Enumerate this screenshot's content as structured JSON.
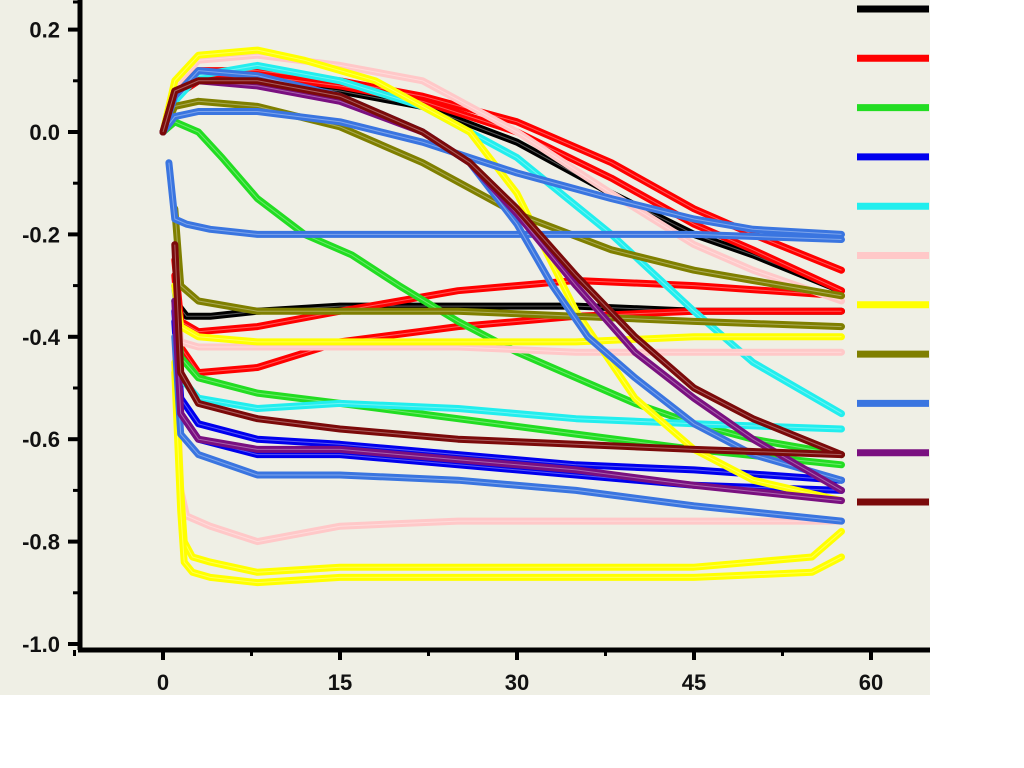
{
  "colors": {
    "background": "#efefe5",
    "axis": "#000000"
  },
  "chart_data": {
    "type": "line",
    "title": "",
    "xlabel": "",
    "ylabel": "",
    "xlim": [
      -9.5,
      60
    ],
    "ylim": [
      -1.0,
      0.26
    ],
    "x_ticks": [
      0,
      15,
      30,
      45,
      60
    ],
    "x_tick_labels": [
      "0",
      "15",
      "30",
      "45",
      "60"
    ],
    "y_ticks": [
      0.2,
      0.0,
      -0.2,
      -0.4,
      -0.6,
      -0.8,
      -1.0
    ],
    "y_tick_labels": [
      "0.2",
      "0.0",
      "-0.2",
      "-0.4",
      "-0.6",
      "-0.8",
      "-1.0"
    ],
    "grid": false,
    "legend_position": "right",
    "series": [
      {
        "color": "#000000",
        "curves": [
          {
            "x": [
              0,
              1,
              3,
              8,
              15,
              22,
              30,
              38,
              45,
              50,
              57.5
            ],
            "y": [
              0.0,
              0.07,
              0.1,
              0.1,
              0.08,
              0.05,
              -0.02,
              -0.12,
              -0.2,
              -0.24,
              -0.31
            ]
          },
          {
            "x": [
              1,
              2,
              4,
              8,
              15,
              25,
              35,
              45,
              57.5
            ],
            "y": [
              -0.33,
              -0.36,
              -0.36,
              -0.35,
              -0.34,
              -0.34,
              -0.34,
              -0.35,
              -0.35
            ]
          }
        ]
      },
      {
        "color": "#ff0000",
        "curves": [
          {
            "x": [
              0,
              1,
              3,
              8,
              15,
              22,
              30,
              38,
              45,
              50,
              57.5
            ],
            "y": [
              0.0,
              0.08,
              0.12,
              0.12,
              0.1,
              0.07,
              0.02,
              -0.06,
              -0.15,
              -0.2,
              -0.27
            ]
          },
          {
            "x": [
              0,
              1,
              3,
              8,
              15,
              22,
              30,
              38,
              45,
              50,
              57.5
            ],
            "y": [
              0.0,
              0.07,
              0.1,
              0.11,
              0.09,
              0.06,
              0.0,
              -0.09,
              -0.18,
              -0.23,
              -0.31
            ]
          },
          {
            "x": [
              1,
              1.5,
              3,
              8,
              15,
              25,
              35,
              45,
              57.5
            ],
            "y": [
              -0.25,
              -0.37,
              -0.39,
              -0.38,
              -0.35,
              -0.31,
              -0.29,
              -0.3,
              -0.32
            ]
          },
          {
            "x": [
              1,
              1.5,
              3,
              8,
              15,
              25,
              35,
              45,
              57.5
            ],
            "y": [
              -0.28,
              -0.42,
              -0.47,
              -0.46,
              -0.41,
              -0.38,
              -0.36,
              -0.35,
              -0.35
            ]
          }
        ]
      },
      {
        "color": "#22dd22",
        "curves": [
          {
            "x": [
              0,
              1,
              3,
              5,
              8,
              12,
              16,
              20,
              25,
              30,
              35,
              40,
              45,
              50,
              57.5
            ],
            "y": [
              0.0,
              0.02,
              0.0,
              -0.05,
              -0.13,
              -0.2,
              -0.24,
              -0.3,
              -0.37,
              -0.43,
              -0.48,
              -0.53,
              -0.57,
              -0.6,
              -0.63
            ]
          },
          {
            "x": [
              1,
              1.5,
              3,
              8,
              15,
              25,
              35,
              45,
              57.5
            ],
            "y": [
              -0.3,
              -0.44,
              -0.48,
              -0.51,
              -0.53,
              -0.56,
              -0.59,
              -0.62,
              -0.65
            ]
          }
        ]
      },
      {
        "color": "#0000ee",
        "curves": [
          {
            "x": [
              1,
              1.5,
              3,
              8,
              15,
              25,
              35,
              45,
              57.5
            ],
            "y": [
              -0.35,
              -0.52,
              -0.57,
              -0.6,
              -0.61,
              -0.63,
              -0.65,
              -0.66,
              -0.68
            ]
          },
          {
            "x": [
              1,
              1.5,
              3,
              8,
              15,
              25,
              35,
              45,
              57.5
            ],
            "y": [
              -0.37,
              -0.55,
              -0.6,
              -0.63,
              -0.63,
              -0.65,
              -0.67,
              -0.69,
              -0.7
            ]
          }
        ]
      },
      {
        "color": "#22eeee",
        "curves": [
          {
            "x": [
              0,
              1,
              3,
              8,
              15,
              22,
              30,
              38,
              45,
              50,
              57.5
            ],
            "y": [
              0.0,
              0.06,
              0.11,
              0.13,
              0.1,
              0.05,
              -0.05,
              -0.2,
              -0.35,
              -0.45,
              -0.55
            ]
          },
          {
            "x": [
              1,
              1.5,
              3,
              8,
              15,
              25,
              35,
              45,
              57.5
            ],
            "y": [
              -0.33,
              -0.48,
              -0.52,
              -0.54,
              -0.53,
              -0.54,
              -0.56,
              -0.57,
              -0.58
            ]
          }
        ]
      },
      {
        "color": "#ffc8c8",
        "curves": [
          {
            "x": [
              0,
              1,
              3,
              8,
              15,
              22,
              30,
              38,
              45,
              50,
              57.5
            ],
            "y": [
              0.0,
              0.09,
              0.14,
              0.15,
              0.13,
              0.1,
              0.0,
              -0.12,
              -0.22,
              -0.27,
              -0.33
            ]
          },
          {
            "x": [
              1,
              1.5,
              3,
              8,
              15,
              25,
              35,
              45,
              57.5
            ],
            "y": [
              -0.3,
              -0.41,
              -0.42,
              -0.42,
              -0.42,
              -0.42,
              -0.43,
              -0.43,
              -0.43
            ]
          },
          {
            "x": [
              1,
              1.5,
              2,
              4,
              8,
              15,
              25,
              35,
              45,
              57.5
            ],
            "y": [
              -0.4,
              -0.7,
              -0.75,
              -0.77,
              -0.8,
              -0.77,
              -0.76,
              -0.76,
              -0.76,
              -0.76
            ]
          }
        ]
      },
      {
        "color": "#ffff00",
        "curves": [
          {
            "x": [
              0,
              1,
              3,
              8,
              12,
              18,
              22,
              26,
              30,
              35,
              40,
              45,
              50,
              57.5
            ],
            "y": [
              0.0,
              0.1,
              0.15,
              0.16,
              0.14,
              0.1,
              0.05,
              0.0,
              -0.12,
              -0.35,
              -0.52,
              -0.62,
              -0.68,
              -0.72
            ]
          },
          {
            "x": [
              1,
              1.5,
              3,
              8,
              15,
              25,
              35,
              45,
              57.5
            ],
            "y": [
              -0.3,
              -0.38,
              -0.4,
              -0.41,
              -0.41,
              -0.41,
              -0.41,
              -0.4,
              -0.4
            ]
          },
          {
            "x": [
              1,
              1.5,
              1.8,
              2.5,
              4,
              8,
              15,
              25,
              35,
              45,
              55,
              57.5
            ],
            "y": [
              -0.45,
              -0.7,
              -0.8,
              -0.83,
              -0.84,
              -0.86,
              -0.85,
              -0.85,
              -0.85,
              -0.85,
              -0.83,
              -0.78
            ]
          },
          {
            "x": [
              1,
              1.5,
              1.8,
              2.5,
              4,
              8,
              15,
              25,
              35,
              45,
              55,
              57.5
            ],
            "y": [
              -0.47,
              -0.74,
              -0.84,
              -0.86,
              -0.87,
              -0.88,
              -0.87,
              -0.87,
              -0.87,
              -0.87,
              -0.86,
              -0.83
            ]
          }
        ]
      },
      {
        "color": "#7f7f00",
        "curves": [
          {
            "x": [
              0,
              1,
              3,
              8,
              15,
              22,
              30,
              38,
              45,
              50,
              57.5
            ],
            "y": [
              0.0,
              0.05,
              0.06,
              0.05,
              0.01,
              -0.06,
              -0.16,
              -0.23,
              -0.27,
              -0.29,
              -0.32
            ]
          },
          {
            "x": [
              1,
              1.5,
              3,
              8,
              15,
              25,
              35,
              45,
              57.5
            ],
            "y": [
              -0.15,
              -0.3,
              -0.33,
              -0.35,
              -0.35,
              -0.35,
              -0.36,
              -0.37,
              -0.38
            ]
          }
        ]
      },
      {
        "color": "#3a75e0",
        "curves": [
          {
            "x": [
              0,
              1,
              3,
              8,
              15,
              22,
              30,
              38,
              45,
              50,
              57.5
            ],
            "y": [
              0.0,
              0.03,
              0.04,
              0.04,
              0.02,
              -0.02,
              -0.08,
              -0.13,
              -0.17,
              -0.19,
              -0.2
            ]
          },
          {
            "x": [
              0.5,
              1,
              2,
              4,
              8,
              15,
              25,
              35,
              45,
              57.5
            ],
            "y": [
              -0.06,
              -0.17,
              -0.18,
              -0.19,
              -0.2,
              -0.2,
              -0.2,
              -0.2,
              -0.2,
              -0.21
            ]
          },
          {
            "x": [
              0,
              1,
              3,
              8,
              15,
              22,
              26,
              30,
              33,
              36,
              40,
              45,
              50,
              57.5
            ],
            "y": [
              0.0,
              0.07,
              0.12,
              0.11,
              0.07,
              0.0,
              -0.06,
              -0.18,
              -0.3,
              -0.4,
              -0.48,
              -0.57,
              -0.63,
              -0.68
            ]
          },
          {
            "x": [
              1,
              1.5,
              3,
              8,
              15,
              25,
              35,
              45,
              57.5
            ],
            "y": [
              -0.4,
              -0.59,
              -0.63,
              -0.67,
              -0.67,
              -0.68,
              -0.7,
              -0.73,
              -0.76
            ]
          }
        ]
      },
      {
        "color": "#7a1080",
        "curves": [
          {
            "x": [
              0,
              1,
              3,
              8,
              15,
              22,
              26,
              30,
              35,
              40,
              45,
              50,
              57.5
            ],
            "y": [
              0.0,
              0.08,
              0.1,
              0.09,
              0.06,
              0.0,
              -0.06,
              -0.16,
              -0.3,
              -0.43,
              -0.52,
              -0.6,
              -0.7
            ]
          },
          {
            "x": [
              1,
              1.5,
              3,
              8,
              15,
              25,
              35,
              45,
              57.5
            ],
            "y": [
              -0.33,
              -0.55,
              -0.6,
              -0.62,
              -0.62,
              -0.64,
              -0.66,
              -0.69,
              -0.72
            ]
          }
        ]
      },
      {
        "color": "#7b0a0a",
        "curves": [
          {
            "x": [
              0,
              1,
              3,
              8,
              15,
              22,
              26,
              30,
              35,
              40,
              45,
              50,
              57.5
            ],
            "y": [
              0.0,
              0.08,
              0.1,
              0.1,
              0.07,
              0.0,
              -0.06,
              -0.15,
              -0.28,
              -0.4,
              -0.5,
              -0.56,
              -0.63
            ]
          },
          {
            "x": [
              1,
              1.5,
              3,
              8,
              15,
              25,
              35,
              45,
              57.5
            ],
            "y": [
              -0.22,
              -0.47,
              -0.53,
              -0.56,
              -0.58,
              -0.6,
              -0.61,
              -0.62,
              -0.63
            ]
          }
        ]
      }
    ]
  }
}
